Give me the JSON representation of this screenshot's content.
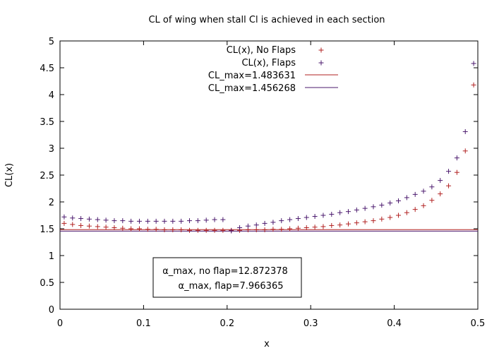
{
  "chart_data": {
    "type": "scatter",
    "title": "CL of wing when stall Cl is achieved in each section",
    "xlabel": "x",
    "ylabel": "CL(x)",
    "xlim": [
      0,
      0.5
    ],
    "ylim": [
      0,
      5
    ],
    "x_ticks": [
      "0",
      "0.1",
      "0.2",
      "0.3",
      "0.4",
      "0.5"
    ],
    "y_ticks": [
      "0",
      "0.5",
      "1",
      "1.5",
      "2",
      "2.5",
      "3",
      "3.5",
      "4",
      "4.5",
      "5"
    ],
    "grid": false,
    "legend_position": "top-center",
    "series": [
      {
        "name": "CL(x), No Flaps",
        "marker": "plus",
        "color": "#b22222",
        "points": [
          [
            0.005,
            1.6
          ],
          [
            0.015,
            1.58
          ],
          [
            0.025,
            1.56
          ],
          [
            0.035,
            1.55
          ],
          [
            0.045,
            1.54
          ],
          [
            0.055,
            1.53
          ],
          [
            0.065,
            1.52
          ],
          [
            0.075,
            1.51
          ],
          [
            0.085,
            1.5
          ],
          [
            0.095,
            1.5
          ],
          [
            0.105,
            1.49
          ],
          [
            0.115,
            1.49
          ],
          [
            0.125,
            1.48
          ],
          [
            0.135,
            1.48
          ],
          [
            0.145,
            1.48
          ],
          [
            0.155,
            1.47
          ],
          [
            0.165,
            1.47
          ],
          [
            0.175,
            1.47
          ],
          [
            0.185,
            1.47
          ],
          [
            0.195,
            1.47
          ],
          [
            0.205,
            1.47
          ],
          [
            0.215,
            1.47
          ],
          [
            0.225,
            1.48
          ],
          [
            0.235,
            1.48
          ],
          [
            0.245,
            1.48
          ],
          [
            0.255,
            1.49
          ],
          [
            0.265,
            1.49
          ],
          [
            0.275,
            1.5
          ],
          [
            0.285,
            1.51
          ],
          [
            0.295,
            1.52
          ],
          [
            0.305,
            1.53
          ],
          [
            0.315,
            1.54
          ],
          [
            0.325,
            1.56
          ],
          [
            0.335,
            1.57
          ],
          [
            0.345,
            1.59
          ],
          [
            0.355,
            1.61
          ],
          [
            0.365,
            1.63
          ],
          [
            0.375,
            1.65
          ],
          [
            0.385,
            1.68
          ],
          [
            0.395,
            1.71
          ],
          [
            0.405,
            1.75
          ],
          [
            0.415,
            1.8
          ],
          [
            0.425,
            1.86
          ],
          [
            0.435,
            1.93
          ],
          [
            0.445,
            2.03
          ],
          [
            0.455,
            2.15
          ],
          [
            0.465,
            2.3
          ],
          [
            0.475,
            2.55
          ],
          [
            0.485,
            2.95
          ],
          [
            0.495,
            4.18
          ]
        ]
      },
      {
        "name": "CL(x), Flaps",
        "marker": "plus",
        "color": "#4b1a6e",
        "points": [
          [
            0.005,
            1.72
          ],
          [
            0.015,
            1.7
          ],
          [
            0.025,
            1.69
          ],
          [
            0.035,
            1.68
          ],
          [
            0.045,
            1.67
          ],
          [
            0.055,
            1.66
          ],
          [
            0.065,
            1.65
          ],
          [
            0.075,
            1.65
          ],
          [
            0.085,
            1.64
          ],
          [
            0.095,
            1.64
          ],
          [
            0.105,
            1.64
          ],
          [
            0.115,
            1.64
          ],
          [
            0.125,
            1.64
          ],
          [
            0.135,
            1.64
          ],
          [
            0.145,
            1.64
          ],
          [
            0.155,
            1.65
          ],
          [
            0.165,
            1.65
          ],
          [
            0.175,
            1.66
          ],
          [
            0.185,
            1.67
          ],
          [
            0.195,
            1.67
          ],
          [
            0.205,
            1.46
          ],
          [
            0.215,
            1.52
          ],
          [
            0.225,
            1.55
          ],
          [
            0.235,
            1.57
          ],
          [
            0.245,
            1.6
          ],
          [
            0.255,
            1.62
          ],
          [
            0.265,
            1.65
          ],
          [
            0.275,
            1.67
          ],
          [
            0.285,
            1.69
          ],
          [
            0.295,
            1.71
          ],
          [
            0.305,
            1.73
          ],
          [
            0.315,
            1.75
          ],
          [
            0.325,
            1.77
          ],
          [
            0.335,
            1.8
          ],
          [
            0.345,
            1.82
          ],
          [
            0.355,
            1.85
          ],
          [
            0.365,
            1.88
          ],
          [
            0.375,
            1.91
          ],
          [
            0.385,
            1.94
          ],
          [
            0.395,
            1.98
          ],
          [
            0.405,
            2.02
          ],
          [
            0.415,
            2.08
          ],
          [
            0.425,
            2.14
          ],
          [
            0.435,
            2.2
          ],
          [
            0.445,
            2.28
          ],
          [
            0.455,
            2.4
          ],
          [
            0.465,
            2.57
          ],
          [
            0.475,
            2.82
          ],
          [
            0.485,
            3.31
          ],
          [
            0.495,
            4.58
          ]
        ]
      }
    ],
    "reference_lines": [
      {
        "name": "CL_max=1.483631",
        "y": 1.483631,
        "color": "#b22222"
      },
      {
        "name": "CL_max=1.456268",
        "y": 1.456268,
        "color": "#4b1a6e"
      }
    ],
    "annotations": [
      "α_max, no flap=12.872378",
      "α_max, flap=7.966365"
    ]
  }
}
